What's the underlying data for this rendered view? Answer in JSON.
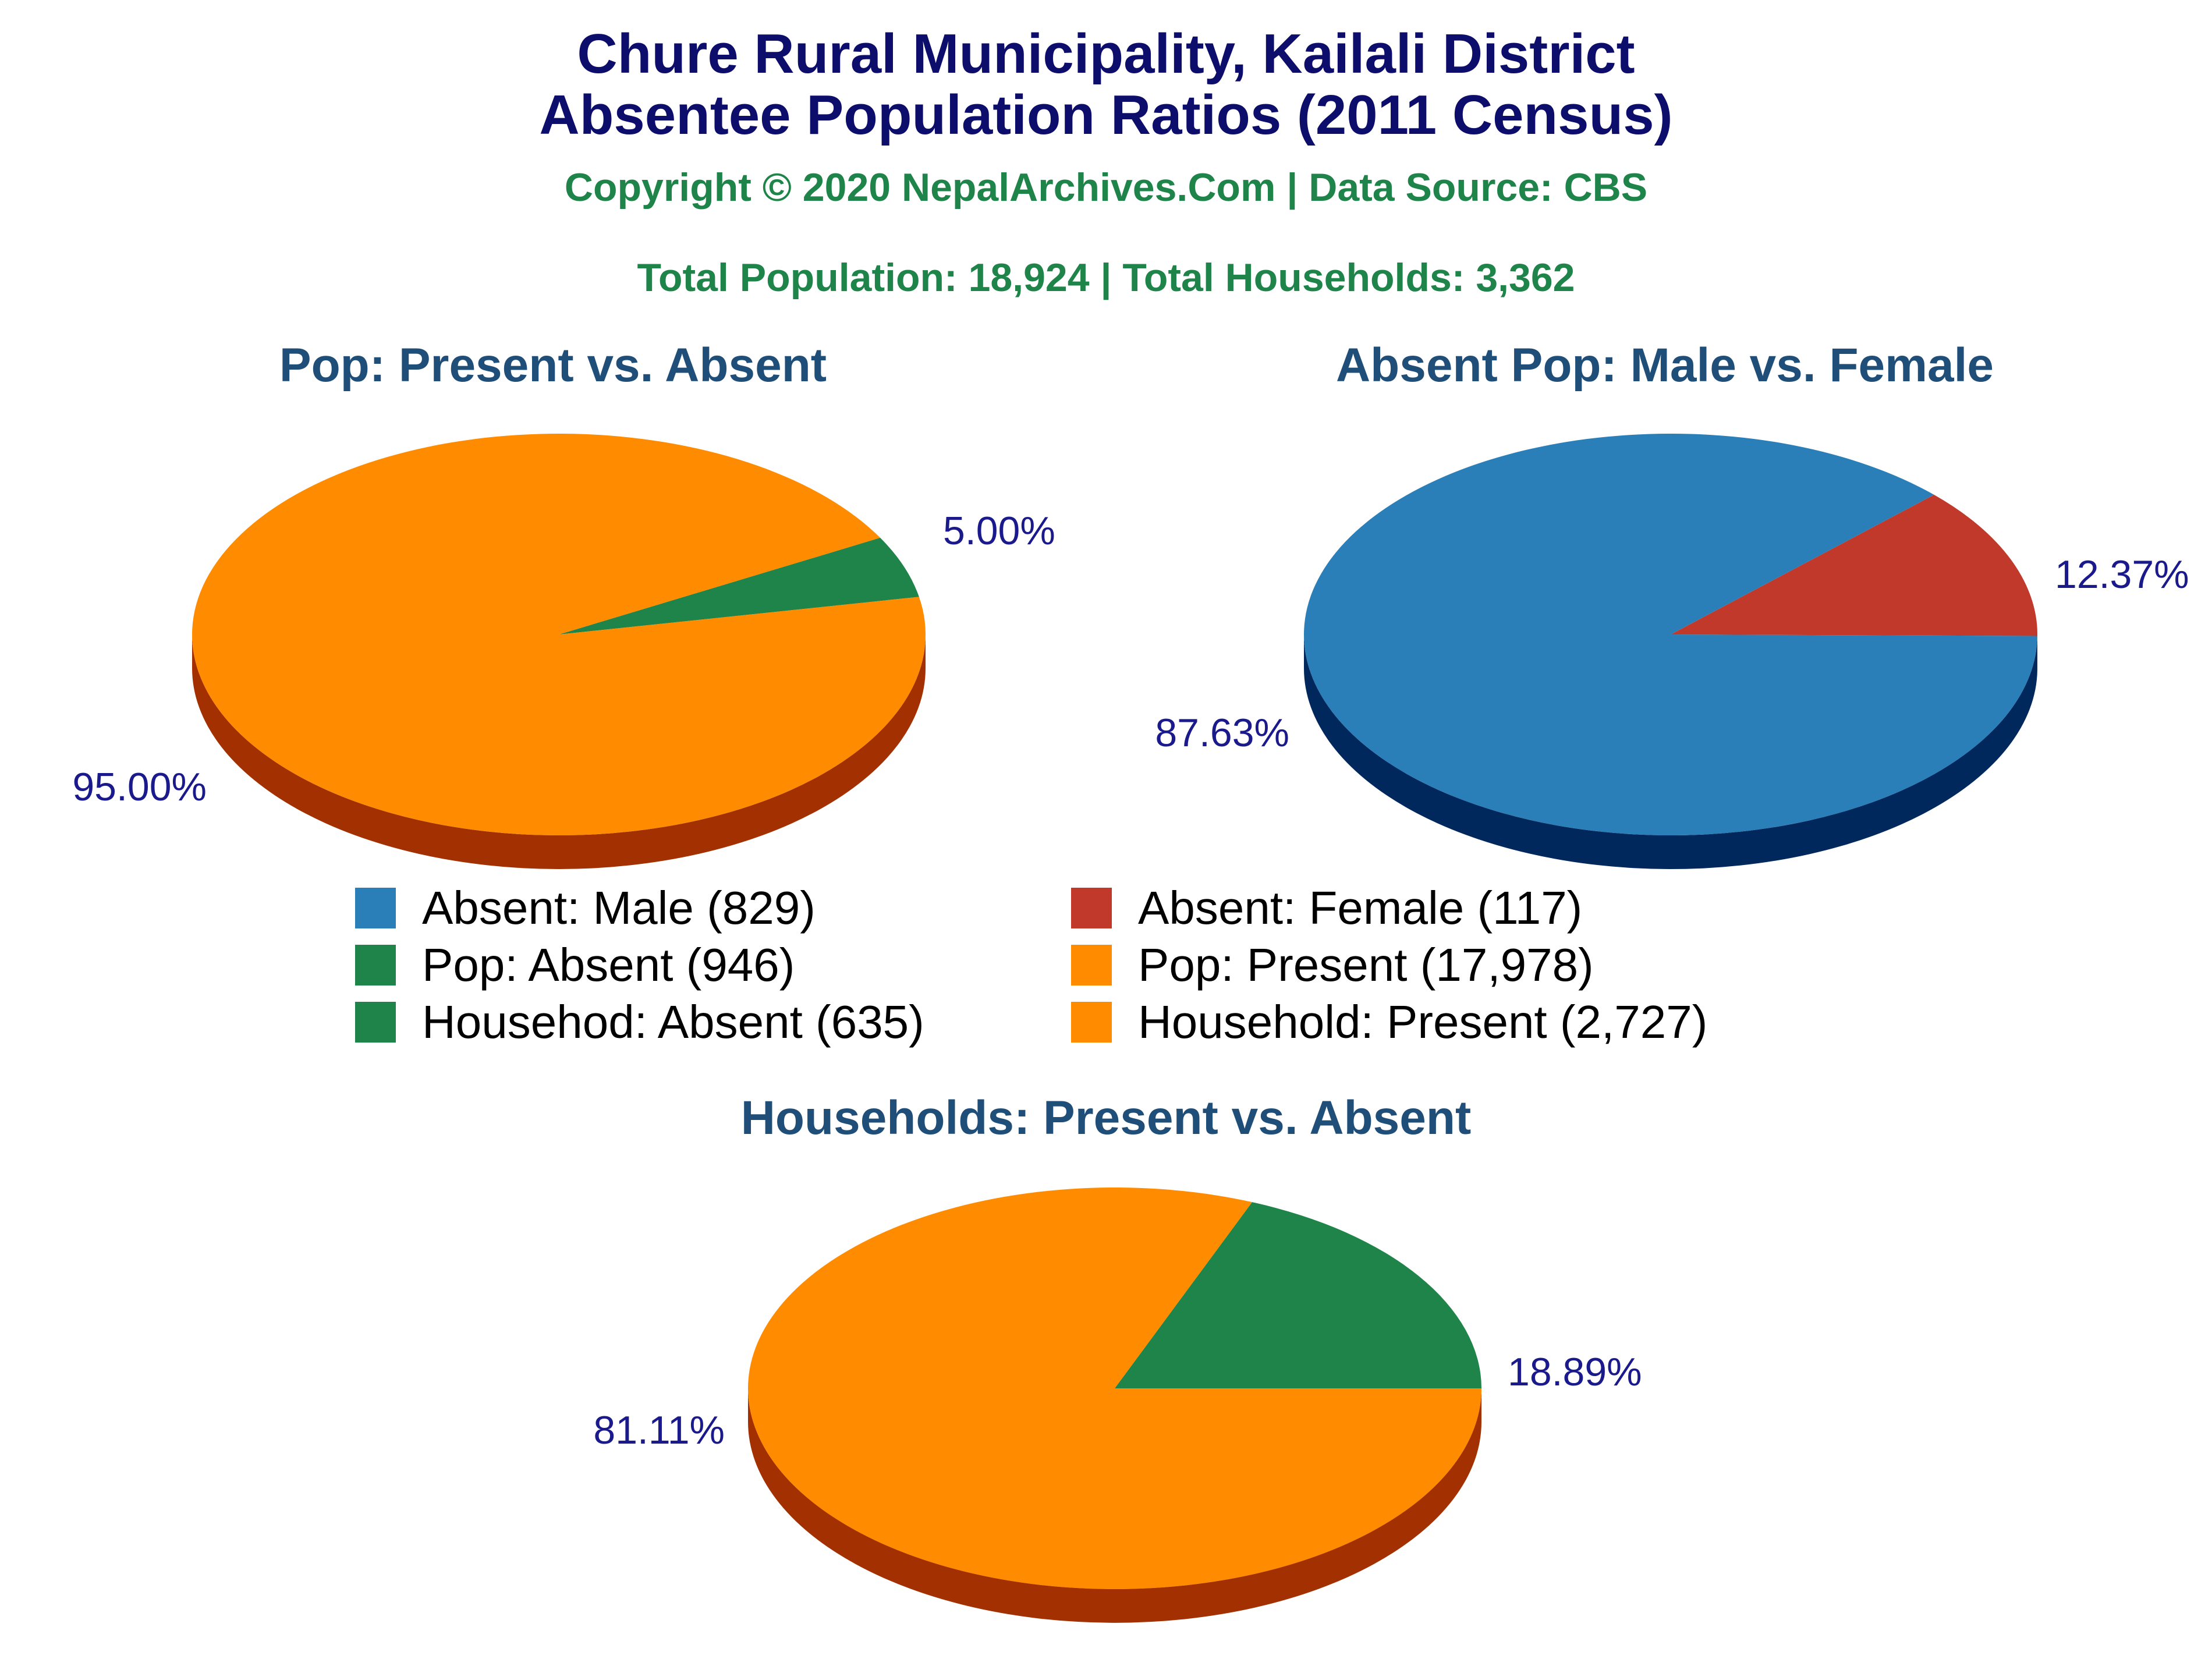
{
  "header": {
    "title_line1": "Chure Rural Municipality, Kailali District",
    "title_line2": "Absentee Population Ratios (2011 Census)",
    "copyright": "Copyright © 2020 NepalArchives.Com | Data Source: CBS",
    "totals": "Total Population: 18,924 | Total Households: 3,362"
  },
  "colors": {
    "title": "#0d0d6b",
    "green_text": "#1e8449",
    "subtitle": "#1f4e79",
    "label": "#1a1a8c",
    "orange": "#ff8c00",
    "orange_side": "#a33000",
    "green": "#1e8449",
    "green_side": "#0a3300",
    "blue": "#2a7fb8",
    "blue_side": "#00285c",
    "red": "#c0392b",
    "red_side": "#7a1a10"
  },
  "legend": [
    {
      "label": "Absent: Male (829)",
      "color": "#2a7fb8"
    },
    {
      "label": "Absent: Female (117)",
      "color": "#c0392b"
    },
    {
      "label": "Pop: Absent (946)",
      "color": "#1e8449"
    },
    {
      "label": "Pop: Present (17,978)",
      "color": "#ff8c00"
    },
    {
      "label": "Househod: Absent (635)",
      "color": "#1e8449"
    },
    {
      "label": "Household: Present (2,727)",
      "color": "#ff8c00"
    }
  ],
  "chart_data": [
    {
      "type": "pie",
      "title": "Pop: Present vs. Absent",
      "slices": [
        {
          "name": "Pop: Absent",
          "value": 946,
          "label": "5.00%",
          "color": "#1e8449",
          "side": "#0a3300"
        },
        {
          "name": "Pop: Present",
          "value": 17978,
          "label": "95.00%",
          "color": "#ff8c00",
          "side": "#a33000"
        }
      ]
    },
    {
      "type": "pie",
      "title": "Absent Pop: Male vs. Female",
      "slices": [
        {
          "name": "Absent: Female",
          "value": 117,
          "label": "12.37%",
          "color": "#c0392b",
          "side": "#7a1a10"
        },
        {
          "name": "Absent: Male",
          "value": 829,
          "label": "87.63%",
          "color": "#2a7fb8",
          "side": "#00285c"
        }
      ]
    },
    {
      "type": "pie",
      "title": "Households: Present vs. Absent",
      "slices": [
        {
          "name": "Household: Absent",
          "value": 635,
          "label": "18.89%",
          "color": "#1e8449",
          "side": "#0a3300"
        },
        {
          "name": "Household: Present",
          "value": 2727,
          "label": "81.11%",
          "color": "#ff8c00",
          "side": "#a33000"
        }
      ]
    }
  ]
}
